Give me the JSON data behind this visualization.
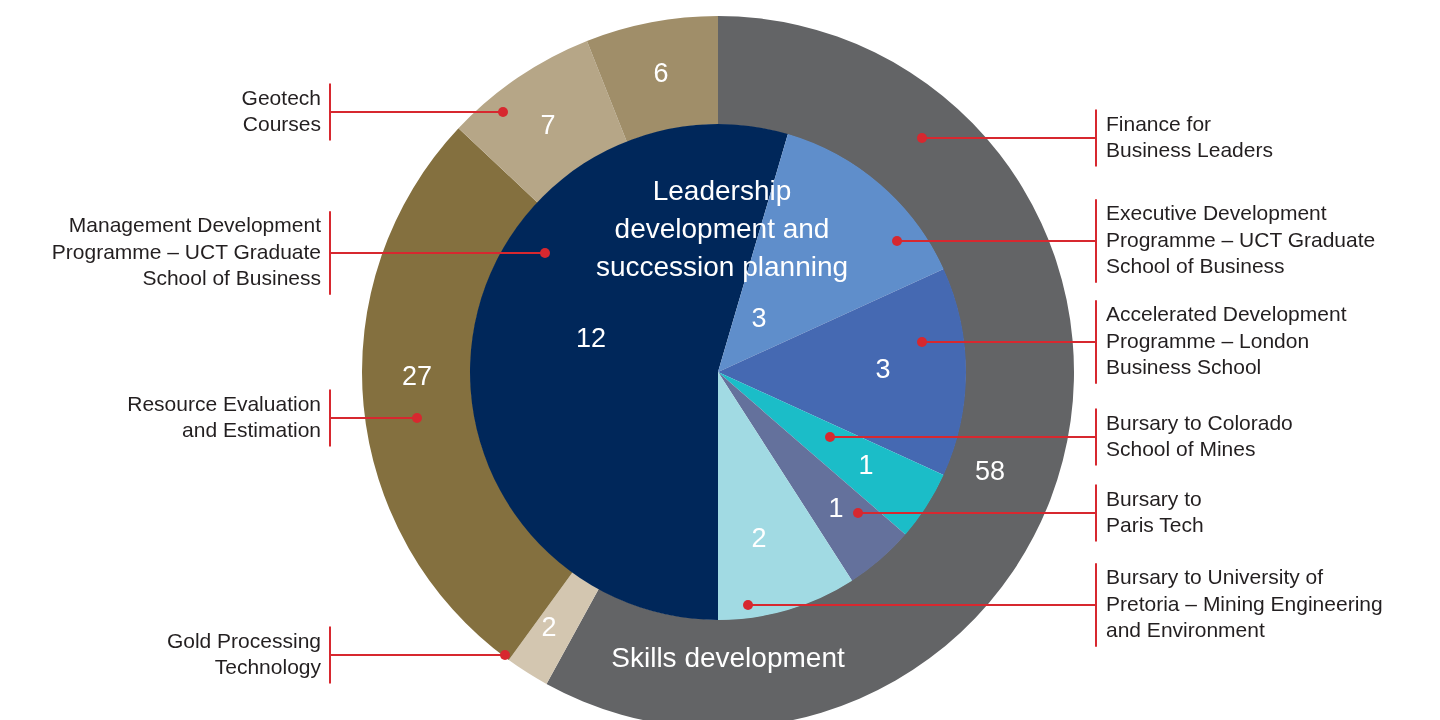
{
  "chart_data": [
    {
      "type": "donut",
      "title": "Skills development",
      "categories": [
        "Finance for\nBusiness Leaders",
        "Gold Processing\nTechnology",
        "Resource Evaluation\nand Estimation",
        "Geotech\nCourses",
        null
      ],
      "values": [
        58,
        2,
        27,
        7,
        6
      ],
      "colors": [
        "#636466",
        "#d3c6b0",
        "#84703f",
        "#b6a687",
        "#a08e69"
      ],
      "data_labels": true,
      "legend": false
    },
    {
      "type": "pie",
      "title": "Leadership development and succession planning",
      "categories": [
        "Management Development\nProgramme – UCT Graduate\nSchool of Business",
        "Executive Development\nProgramme – UCT Graduate\nSchool of Business",
        "Accelerated Development\nProgramme – London\nBusiness School",
        "Bursary to Colorado\nSchool of Mines",
        "Bursary to\nParis Tech",
        "Bursary to University of\nPretoria – Mining Engineering\nand Environment"
      ],
      "values": [
        12,
        3,
        3,
        1,
        1,
        2
      ],
      "colors": [
        "#00275a",
        "#5f8ecb",
        "#4569b2",
        "#1bbdc8",
        "#64719c",
        "#a1dae3"
      ],
      "data_labels": true,
      "legend": false
    }
  ]
}
